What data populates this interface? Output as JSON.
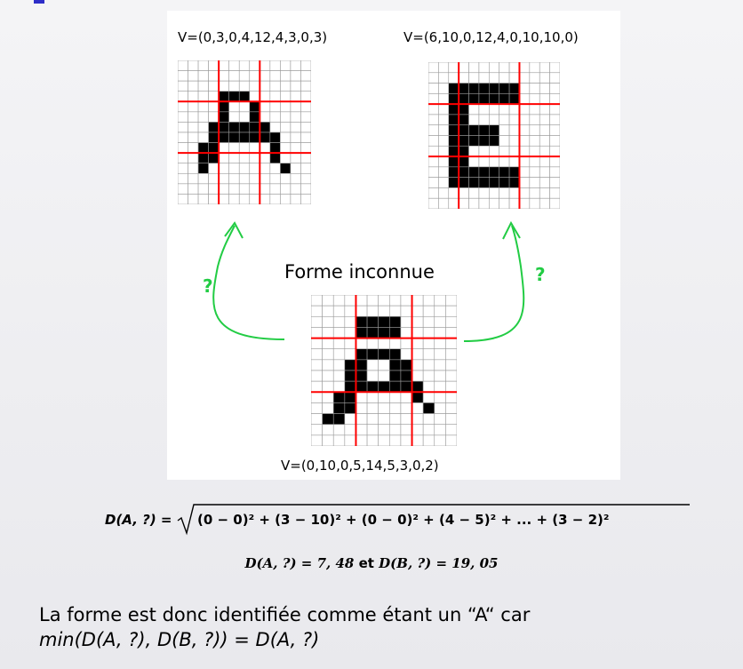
{
  "figure": {
    "label_a": "V=(0,3,0,4,12,4,3,0,3)",
    "label_e": "V=(6,10,0,12,4,0,10,10,0)",
    "label_unknown_title": "Forme inconnue",
    "label_unknown_vector": "V=(0,10,0,5,14,5,3,0,2)",
    "question_left": "?",
    "question_right": "?",
    "accent_color": "#22cc44",
    "grid_line_color": "#ff0000"
  },
  "grids": {
    "letter_a": [
      "0000000000000",
      "0000000000000",
      "0000000000000",
      "0000111000000",
      "0000100100000",
      "0000100100000",
      "0003111110000",
      "0001111111000",
      "0011000001000",
      "0011000001000",
      "0010000000100",
      "0000000000000",
      "0000000000000",
      "0000000000000"
    ],
    "letter_e": [
      "0000000000000",
      "0000000000000",
      "0011111110000",
      "0011111110000",
      "0011000000000",
      "0011000000000",
      "0011111000000",
      "0011111000000",
      "0011000000000",
      "0011000000000",
      "0011111110000",
      "0011111110000",
      "0000000000000",
      "0000000000000"
    ],
    "unknown": [
      "0000000000000",
      "0000000000000",
      "0000111100000",
      "0000111100000",
      "0000000000000",
      "0000111100000",
      "0001100110000",
      "0001100110000",
      "0001111111000",
      "0011000001000",
      "0011000000100",
      "0110000000000",
      "0000000000000",
      "0000000000000"
    ]
  },
  "equations": {
    "distance_lhs": "D(A, ?) =",
    "distance_rhs": "(0 − 0)² + (3 − 10)² + (0 − 0)² + (4 − 5)² + ... + (3 − 2)²",
    "result_a": "D(A, ?) = 7, 48",
    "result_joiner": "et",
    "result_b": "D(B, ?) = 19, 05"
  },
  "conclusion": {
    "line1": "La forme est donc identifiée comme étant un “A“ car",
    "line2": "min(D(A, ?), D(B, ?)) = D(A, ?)"
  }
}
